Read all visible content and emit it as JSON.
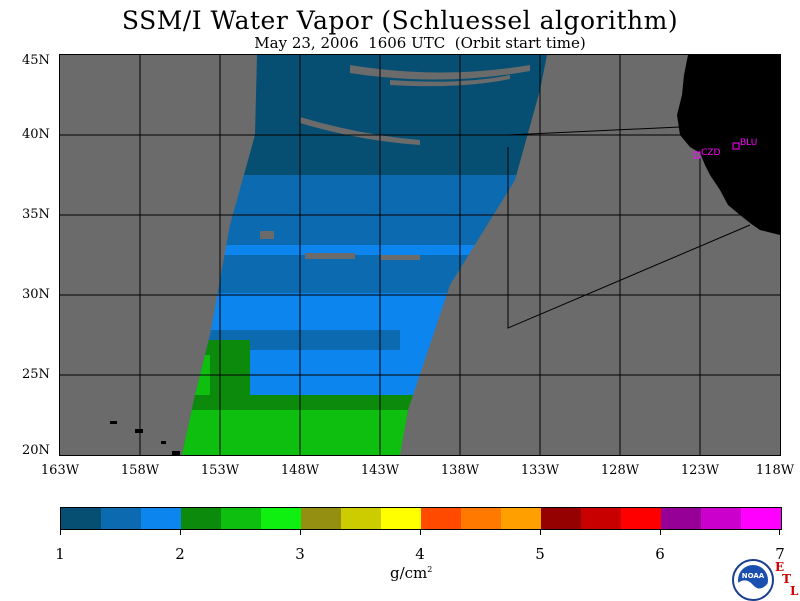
{
  "title": "SSM/I Water Vapor (Schluessel algorithm)",
  "subtitle": "May 23, 2006  1606 UTC  (Orbit start time)",
  "lat_labels": [
    "45N",
    "40N",
    "35N",
    "30N",
    "25N",
    "20N"
  ],
  "lon_labels": [
    "163W",
    "158W",
    "153W",
    "148W",
    "143W",
    "138W",
    "133W",
    "128W",
    "123W",
    "118W"
  ],
  "stations": [
    "CZD",
    "BLU"
  ],
  "colorbar": {
    "ticks": [
      "1",
      "2",
      "3",
      "4",
      "5",
      "6",
      "7"
    ],
    "units_base": "g/cm",
    "units_exp": "2",
    "colors": [
      "#064f73",
      "#0b6ab0",
      "#0d85ef",
      "#0b8a0b",
      "#0fbf0f",
      "#10f010",
      "#948f10",
      "#cccc00",
      "#ffff00",
      "#ff4a00",
      "#ff7800",
      "#ffa000",
      "#950000",
      "#c80000",
      "#ff0000",
      "#960096",
      "#cc00cc",
      "#ff00ff"
    ]
  },
  "logo": {
    "text": "NOAA",
    "lab_letters": [
      "E",
      "T",
      "L"
    ]
  },
  "colors": {
    "no_data": "#6b6b6b",
    "land": "#000000",
    "stations": "#ff00ff"
  }
}
